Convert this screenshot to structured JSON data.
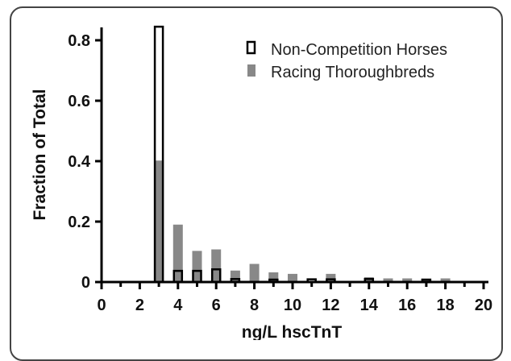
{
  "chart_data": {
    "type": "bar",
    "xlabel": "ng/L hscTnT",
    "ylabel": "Fraction of Total",
    "xlim": [
      0,
      20
    ],
    "ylim": [
      0,
      0.85
    ],
    "x_ticks": [
      "0",
      "2",
      "4",
      "6",
      "8",
      "10",
      "12",
      "14",
      "16",
      "18",
      "20"
    ],
    "y_ticks": [
      "0",
      "0.2",
      "0.4",
      "0.6",
      "0.8"
    ],
    "legend_position": "top-right",
    "series": [
      {
        "name": "Non-Competition Horses",
        "style": "outline",
        "color": "#000000",
        "x": [
          3,
          4,
          5,
          6,
          7,
          9,
          11,
          12,
          14,
          17
        ],
        "values": [
          0.845,
          0.037,
          0.037,
          0.042,
          0.01,
          0.008,
          0.009,
          0.009,
          0.01,
          0.008
        ]
      },
      {
        "name": "Racing Thoroughbreds",
        "style": "filled",
        "color": "#888888",
        "x": [
          3,
          4,
          5,
          6,
          7,
          8,
          9,
          10,
          12,
          14,
          15,
          16,
          17,
          18
        ],
        "values": [
          0.402,
          0.19,
          0.103,
          0.108,
          0.038,
          0.06,
          0.032,
          0.027,
          0.027,
          0.016,
          0.012,
          0.012,
          0.011,
          0.012
        ]
      }
    ]
  }
}
